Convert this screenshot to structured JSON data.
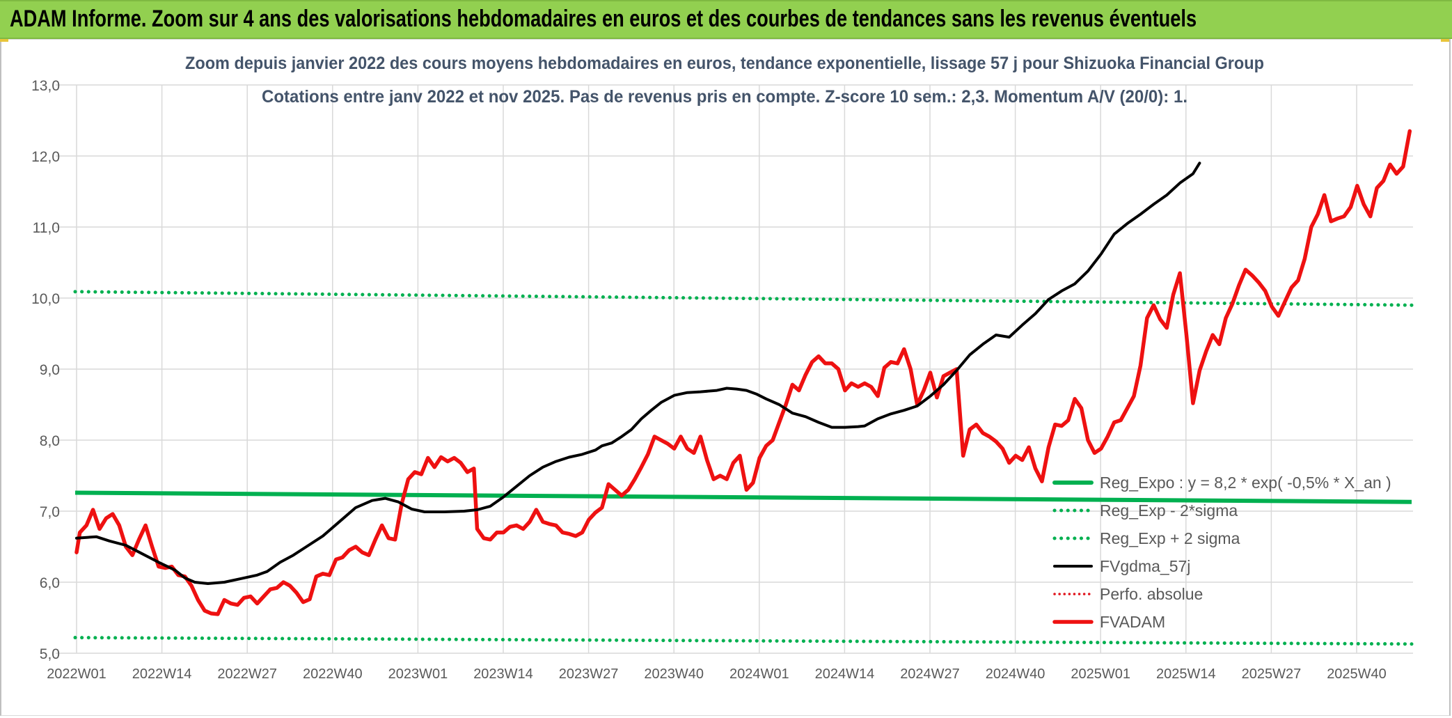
{
  "banner": {
    "title": "ADAM Informe. Zoom sur 4 ans des valorisations hebdomadaires en euros et des courbes de tendances sans les revenus éventuels"
  },
  "colors": {
    "banner_bg": "#92d050",
    "reg_expo": "#00b050",
    "fvgdma": "#000000",
    "perfo": "#e0141c",
    "fvadam": "#ee1111",
    "grid": "#d9d9d9",
    "axis_text": "#595959",
    "title_text": "#44546a"
  },
  "chart_data": {
    "type": "line",
    "title": "Zoom depuis janvier 2022 des cours moyens hebdomadaires en euros, tendance exponentielle, lissage 57 j pour Shizuoka Financial Group",
    "subtitle": "Cotations entre janv 2022 et nov 2025. Pas de revenus pris en compte. Z-score 10 sem.: 2,3. Momentum A/V (20/0): 1.",
    "ylim": [
      5.0,
      13.0
    ],
    "yticks": [
      "5,0",
      "6,0",
      "7,0",
      "8,0",
      "9,0",
      "10,0",
      "11,0",
      "12,0",
      "13,0"
    ],
    "x_tick_labels": [
      "2022W01",
      "2022W14",
      "2022W27",
      "2022W40",
      "2023W01",
      "2023W14",
      "2023W27",
      "2023W40",
      "2024W01",
      "2024W14",
      "2024W27",
      "2024W40",
      "2025W01",
      "2025W14",
      "2025W27",
      "2025W40"
    ],
    "week_count": 207,
    "grid": true,
    "legend_position": "right",
    "series": [
      {
        "name": "Reg_Expo : y = 8,2 * exp( -0,5% *  X_an )",
        "style": "solid-thick",
        "start": 7.26,
        "end": 7.13
      },
      {
        "name": "Reg_Exp - 2*sigma",
        "style": "dotted",
        "start": 5.22,
        "end": 5.13
      },
      {
        "name": "Reg_Exp + 2 sigma",
        "style": "dotted",
        "start": 10.09,
        "end": 9.9
      },
      {
        "name": "FVgdma_57j",
        "style": "solid",
        "points": [
          [
            0,
            6.62
          ],
          [
            6,
            6.64
          ],
          [
            10,
            6.58
          ],
          [
            15,
            6.52
          ],
          [
            20,
            6.4
          ],
          [
            25,
            6.28
          ],
          [
            30,
            6.17
          ],
          [
            33,
            6.06
          ],
          [
            36,
            6.0
          ],
          [
            40,
            5.98
          ],
          [
            45,
            6.0
          ],
          [
            50,
            6.05
          ],
          [
            55,
            6.1
          ],
          [
            58,
            6.15
          ],
          [
            62,
            6.28
          ],
          [
            66,
            6.38
          ],
          [
            70,
            6.5
          ],
          [
            75,
            6.65
          ],
          [
            80,
            6.85
          ],
          [
            85,
            7.05
          ],
          [
            90,
            7.15
          ],
          [
            94,
            7.18
          ],
          [
            98,
            7.13
          ],
          [
            102,
            7.03
          ],
          [
            106,
            6.99
          ],
          [
            112,
            6.99
          ],
          [
            118,
            7.0
          ],
          [
            122,
            7.02
          ],
          [
            126,
            7.07
          ],
          [
            130,
            7.2
          ],
          [
            134,
            7.35
          ],
          [
            138,
            7.5
          ],
          [
            142,
            7.62
          ],
          [
            146,
            7.7
          ],
          [
            150,
            7.76
          ],
          [
            154,
            7.8
          ],
          [
            158,
            7.86
          ],
          [
            160,
            7.92
          ],
          [
            163,
            7.96
          ],
          [
            166,
            8.05
          ],
          [
            169,
            8.15
          ],
          [
            172,
            8.3
          ],
          [
            175,
            8.42
          ],
          [
            178,
            8.53
          ],
          [
            182,
            8.63
          ],
          [
            186,
            8.67
          ],
          [
            190,
            8.68
          ],
          [
            195,
            8.7
          ],
          [
            198,
            8.73
          ],
          [
            201,
            8.72
          ],
          [
            204,
            8.7
          ],
          [
            207,
            8.65
          ],
          [
            210,
            8.58
          ],
          [
            214,
            8.5
          ],
          [
            218,
            8.38
          ],
          [
            222,
            8.33
          ],
          [
            226,
            8.25
          ],
          [
            230,
            8.18
          ],
          [
            234,
            8.18
          ],
          [
            238,
            8.19
          ],
          [
            240,
            8.2
          ],
          [
            244,
            8.3
          ],
          [
            248,
            8.37
          ],
          [
            252,
            8.42
          ],
          [
            256,
            8.48
          ],
          [
            260,
            8.62
          ],
          [
            264,
            8.78
          ],
          [
            268,
            8.98
          ],
          [
            272,
            9.2
          ],
          [
            276,
            9.35
          ],
          [
            280,
            9.48
          ],
          [
            284,
            9.45
          ],
          [
            288,
            9.62
          ],
          [
            292,
            9.78
          ],
          [
            296,
            9.98
          ],
          [
            300,
            10.1
          ],
          [
            304,
            10.2
          ],
          [
            308,
            10.38
          ],
          [
            312,
            10.62
          ],
          [
            316,
            10.9
          ],
          [
            320,
            11.05
          ],
          [
            324,
            11.18
          ],
          [
            328,
            11.32
          ],
          [
            332,
            11.45
          ],
          [
            336,
            11.62
          ],
          [
            340,
            11.75
          ],
          [
            342,
            11.9
          ]
        ]
      },
      {
        "name": "Perfo. absolue",
        "style": "dotted"
      },
      {
        "name": "FVADAM",
        "style": "solid-thick",
        "points": [
          [
            0,
            6.42
          ],
          [
            1,
            6.7
          ],
          [
            3,
            6.8
          ],
          [
            5,
            7.02
          ],
          [
            7,
            6.75
          ],
          [
            9,
            6.9
          ],
          [
            11,
            6.96
          ],
          [
            13,
            6.8
          ],
          [
            15,
            6.5
          ],
          [
            17,
            6.38
          ],
          [
            19,
            6.6
          ],
          [
            21,
            6.8
          ],
          [
            23,
            6.5
          ],
          [
            25,
            6.22
          ],
          [
            27,
            6.2
          ],
          [
            29,
            6.22
          ],
          [
            31,
            6.1
          ],
          [
            33,
            6.08
          ],
          [
            35,
            5.95
          ],
          [
            37,
            5.75
          ],
          [
            39,
            5.6
          ],
          [
            41,
            5.56
          ],
          [
            43,
            5.55
          ],
          [
            45,
            5.75
          ],
          [
            47,
            5.7
          ],
          [
            49,
            5.68
          ],
          [
            51,
            5.78
          ],
          [
            53,
            5.8
          ],
          [
            55,
            5.7
          ],
          [
            57,
            5.8
          ],
          [
            59,
            5.9
          ],
          [
            61,
            5.92
          ],
          [
            63,
            6.0
          ],
          [
            65,
            5.95
          ],
          [
            67,
            5.85
          ],
          [
            69,
            5.72
          ],
          [
            71,
            5.76
          ],
          [
            73,
            6.08
          ],
          [
            75,
            6.12
          ],
          [
            77,
            6.1
          ],
          [
            79,
            6.32
          ],
          [
            81,
            6.35
          ],
          [
            83,
            6.45
          ],
          [
            85,
            6.5
          ],
          [
            87,
            6.42
          ],
          [
            89,
            6.38
          ],
          [
            91,
            6.6
          ],
          [
            93,
            6.8
          ],
          [
            95,
            6.62
          ],
          [
            97,
            6.6
          ],
          [
            99,
            7.1
          ],
          [
            101,
            7.45
          ],
          [
            103,
            7.55
          ],
          [
            105,
            7.52
          ],
          [
            107,
            7.75
          ],
          [
            109,
            7.62
          ],
          [
            111,
            7.76
          ],
          [
            113,
            7.7
          ],
          [
            115,
            7.75
          ],
          [
            117,
            7.68
          ],
          [
            119,
            7.55
          ],
          [
            121,
            7.6
          ],
          [
            122,
            6.75
          ],
          [
            124,
            6.62
          ],
          [
            126,
            6.6
          ],
          [
            128,
            6.7
          ],
          [
            130,
            6.7
          ],
          [
            132,
            6.78
          ],
          [
            134,
            6.8
          ],
          [
            136,
            6.75
          ],
          [
            138,
            6.85
          ],
          [
            140,
            7.02
          ],
          [
            142,
            6.85
          ],
          [
            144,
            6.82
          ],
          [
            146,
            6.8
          ],
          [
            148,
            6.7
          ],
          [
            150,
            6.68
          ],
          [
            152,
            6.65
          ],
          [
            154,
            6.7
          ],
          [
            156,
            6.88
          ],
          [
            158,
            6.98
          ],
          [
            160,
            7.05
          ],
          [
            162,
            7.38
          ],
          [
            164,
            7.3
          ],
          [
            166,
            7.22
          ],
          [
            168,
            7.3
          ],
          [
            170,
            7.45
          ],
          [
            172,
            7.62
          ],
          [
            174,
            7.8
          ],
          [
            176,
            8.05
          ],
          [
            178,
            8.0
          ],
          [
            180,
            7.95
          ],
          [
            182,
            7.88
          ],
          [
            184,
            8.05
          ],
          [
            186,
            7.88
          ],
          [
            188,
            7.82
          ],
          [
            190,
            8.05
          ],
          [
            192,
            7.72
          ],
          [
            194,
            7.45
          ],
          [
            196,
            7.5
          ],
          [
            198,
            7.45
          ],
          [
            200,
            7.68
          ],
          [
            202,
            7.78
          ],
          [
            204,
            7.3
          ],
          [
            206,
            7.4
          ],
          [
            208,
            7.75
          ],
          [
            210,
            7.92
          ],
          [
            212,
            8.0
          ],
          [
            214,
            8.25
          ],
          [
            216,
            8.5
          ],
          [
            218,
            8.78
          ],
          [
            220,
            8.7
          ],
          [
            222,
            8.92
          ],
          [
            224,
            9.1
          ],
          [
            226,
            9.18
          ],
          [
            228,
            9.08
          ],
          [
            230,
            9.08
          ],
          [
            232,
            9.0
          ],
          [
            234,
            8.7
          ],
          [
            236,
            8.8
          ],
          [
            238,
            8.75
          ],
          [
            240,
            8.8
          ],
          [
            242,
            8.75
          ],
          [
            244,
            8.62
          ],
          [
            246,
            9.02
          ],
          [
            248,
            9.1
          ],
          [
            250,
            9.08
          ],
          [
            252,
            9.28
          ],
          [
            254,
            9.0
          ],
          [
            256,
            8.5
          ],
          [
            258,
            8.7
          ],
          [
            260,
            8.95
          ],
          [
            262,
            8.6
          ],
          [
            264,
            8.9
          ],
          [
            266,
            8.95
          ],
          [
            268,
            9.0
          ],
          [
            270,
            7.78
          ],
          [
            272,
            8.15
          ],
          [
            274,
            8.22
          ],
          [
            276,
            8.1
          ],
          [
            278,
            8.05
          ],
          [
            280,
            7.98
          ],
          [
            282,
            7.88
          ],
          [
            284,
            7.68
          ],
          [
            286,
            7.78
          ],
          [
            288,
            7.72
          ],
          [
            290,
            7.9
          ],
          [
            292,
            7.6
          ],
          [
            294,
            7.42
          ],
          [
            296,
            7.9
          ],
          [
            298,
            8.22
          ],
          [
            300,
            8.2
          ],
          [
            302,
            8.28
          ],
          [
            304,
            8.58
          ],
          [
            306,
            8.45
          ],
          [
            308,
            8.0
          ],
          [
            310,
            7.82
          ],
          [
            312,
            7.88
          ],
          [
            314,
            8.05
          ],
          [
            316,
            8.25
          ],
          [
            318,
            8.28
          ],
          [
            320,
            8.45
          ],
          [
            322,
            8.62
          ],
          [
            324,
            9.05
          ],
          [
            326,
            9.72
          ],
          [
            328,
            9.9
          ],
          [
            330,
            9.7
          ],
          [
            332,
            9.58
          ],
          [
            334,
            10.05
          ],
          [
            336,
            10.35
          ],
          [
            338,
            9.48
          ],
          [
            340,
            8.52
          ],
          [
            342,
            8.98
          ],
          [
            344,
            9.25
          ],
          [
            346,
            9.48
          ],
          [
            348,
            9.35
          ],
          [
            350,
            9.72
          ],
          [
            352,
            9.92
          ],
          [
            354,
            10.18
          ],
          [
            356,
            10.4
          ],
          [
            358,
            10.32
          ],
          [
            360,
            10.22
          ],
          [
            362,
            10.1
          ],
          [
            364,
            9.88
          ],
          [
            366,
            9.75
          ],
          [
            368,
            9.95
          ],
          [
            370,
            10.15
          ],
          [
            372,
            10.25
          ],
          [
            374,
            10.55
          ],
          [
            376,
            11.0
          ],
          [
            378,
            11.18
          ],
          [
            380,
            11.45
          ],
          [
            382,
            11.08
          ],
          [
            384,
            11.12
          ],
          [
            386,
            11.15
          ],
          [
            388,
            11.28
          ],
          [
            390,
            11.58
          ],
          [
            392,
            11.32
          ],
          [
            394,
            11.15
          ],
          [
            396,
            11.55
          ],
          [
            398,
            11.65
          ],
          [
            400,
            11.88
          ],
          [
            402,
            11.75
          ],
          [
            404,
            11.85
          ],
          [
            406,
            12.35
          ]
        ]
      }
    ]
  }
}
